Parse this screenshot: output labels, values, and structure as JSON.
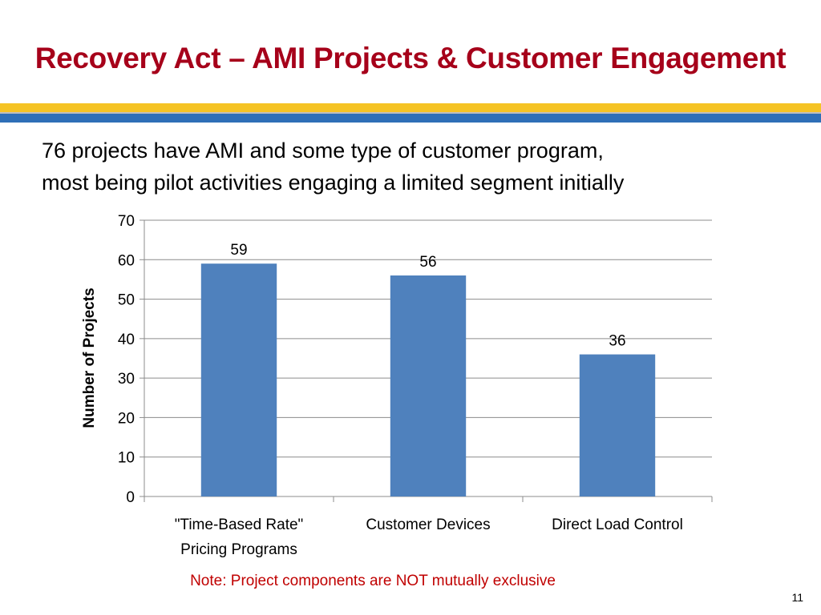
{
  "slide": {
    "title": "Recovery Act – AMI Projects & Customer Engagement",
    "subtitle_lines": [
      "76 projects have AMI and some type of customer program,",
      "most being pilot activities engaging a limited segment initially"
    ],
    "note": "Note: Project components are NOT mutually exclusive",
    "page_number": "11"
  },
  "colors": {
    "title": "#a6001a",
    "band_yellow": "#f5c324",
    "band_blue": "#2f6fb7",
    "bar": "#4f81bd",
    "note": "#c00000"
  },
  "chart_data": {
    "type": "bar",
    "categories": [
      [
        "\"Time-Based Rate\"",
        "Pricing Programs"
      ],
      [
        "Customer Devices"
      ],
      [
        "Direct Load Control"
      ]
    ],
    "values": [
      59,
      56,
      36
    ],
    "data_labels": [
      "59",
      "56",
      "36"
    ],
    "ylabel": "Number of Projects",
    "ylim": [
      0,
      70
    ],
    "yticks": [
      0,
      10,
      20,
      30,
      40,
      50,
      60,
      70
    ],
    "grid": true,
    "legend": "none"
  }
}
